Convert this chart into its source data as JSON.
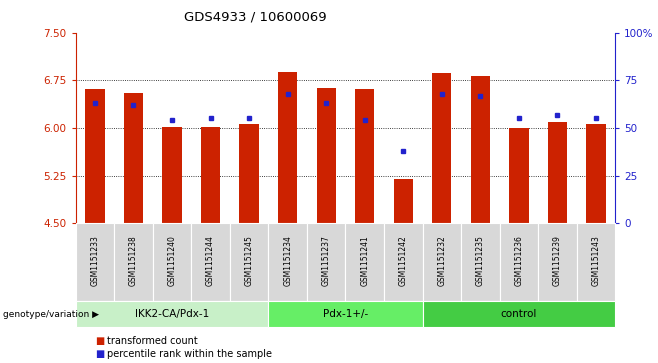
{
  "title": "GDS4933 / 10600069",
  "samples": [
    "GSM1151233",
    "GSM1151238",
    "GSM1151240",
    "GSM1151244",
    "GSM1151245",
    "GSM1151234",
    "GSM1151237",
    "GSM1151241",
    "GSM1151242",
    "GSM1151232",
    "GSM1151235",
    "GSM1151236",
    "GSM1151239",
    "GSM1151243"
  ],
  "red_values": [
    6.62,
    6.55,
    6.02,
    6.02,
    6.07,
    6.88,
    6.63,
    6.62,
    5.2,
    6.87,
    6.82,
    6.0,
    6.1,
    6.06
  ],
  "blue_pct": [
    63,
    62,
    54,
    55,
    55,
    68,
    63,
    54,
    38,
    68,
    67,
    55,
    57,
    55
  ],
  "groups": [
    {
      "label": "IKK2-CA/Pdx-1",
      "start": 0,
      "end": 5,
      "color": "#c8f0c8"
    },
    {
      "label": "Pdx-1+/-",
      "start": 5,
      "end": 9,
      "color": "#66ee66"
    },
    {
      "label": "control",
      "start": 9,
      "end": 14,
      "color": "#44cc44"
    }
  ],
  "ylim_left": [
    4.5,
    7.5
  ],
  "ylim_right": [
    0,
    100
  ],
  "yticks_left": [
    4.5,
    5.25,
    6.0,
    6.75,
    7.5
  ],
  "yticks_right": [
    0,
    25,
    50,
    75,
    100
  ],
  "bar_color": "#cc2200",
  "dot_color": "#2222cc",
  "background_color": "#ffffff",
  "plot_bg_color": "#ffffff",
  "grid_color": "#000000",
  "left_tick_color": "#cc2200",
  "right_tick_color": "#2222cc",
  "sample_box_color": "#d8d8d8",
  "group_label_text": "genotype/variation",
  "legend_red": "transformed count",
  "legend_blue": "percentile rank within the sample"
}
